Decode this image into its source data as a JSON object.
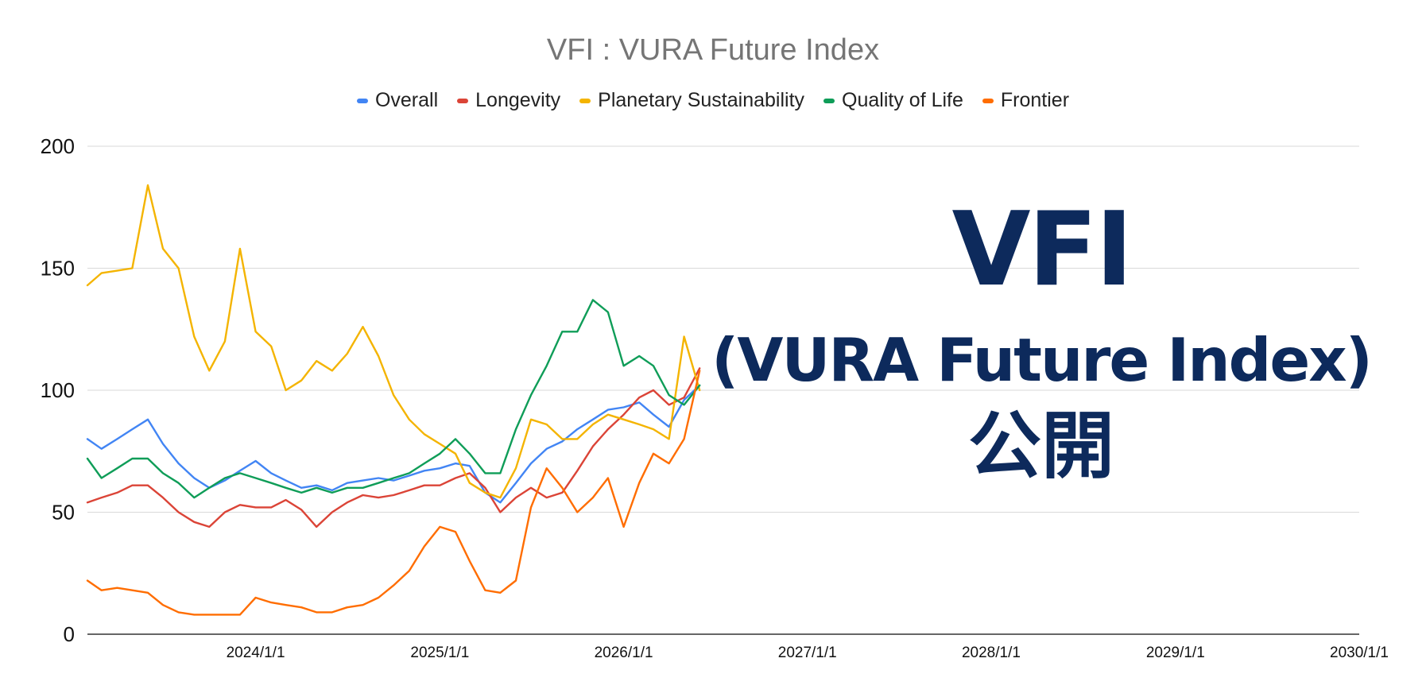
{
  "chart_data": {
    "type": "line",
    "title": "VFI : VURA Future Index",
    "xlabel": "",
    "ylabel": "",
    "ylim": [
      0,
      200
    ],
    "xlim": [
      "2023-02-01",
      "2030-01-01"
    ],
    "y_ticks": [
      0,
      50,
      100,
      150,
      200
    ],
    "y_tick_labels": [
      "0",
      "50",
      "100",
      "150",
      "200"
    ],
    "x_ticks": [
      "2024-01-01",
      "2025-01-01",
      "2026-01-01",
      "2027-01-01",
      "2028-01-01",
      "2029-01-01",
      "2030-01-01"
    ],
    "x_tick_labels": [
      "2024/1/1",
      "2025/1/1",
      "2026/1/1",
      "2027/1/1",
      "2028/1/1",
      "2029/1/1",
      "2030/1/1"
    ],
    "grid": true,
    "legend": "top-center",
    "series": [
      {
        "name": "Overall",
        "color": "#4285f4",
        "points": [
          [
            "2023-02-01",
            80
          ],
          [
            "2023-03-01",
            76
          ],
          [
            "2023-04-01",
            80
          ],
          [
            "2023-05-01",
            84
          ],
          [
            "2023-06-01",
            88
          ],
          [
            "2023-07-01",
            78
          ],
          [
            "2023-08-01",
            70
          ],
          [
            "2023-09-01",
            64
          ],
          [
            "2023-10-01",
            60
          ],
          [
            "2023-11-01",
            63
          ],
          [
            "2023-12-01",
            67
          ],
          [
            "2024-01-01",
            71
          ],
          [
            "2024-02-01",
            66
          ],
          [
            "2024-03-01",
            63
          ],
          [
            "2024-04-01",
            60
          ],
          [
            "2024-05-01",
            61
          ],
          [
            "2024-06-01",
            59
          ],
          [
            "2024-07-01",
            62
          ],
          [
            "2024-08-01",
            63
          ],
          [
            "2024-09-01",
            64
          ],
          [
            "2024-10-01",
            63
          ],
          [
            "2024-11-01",
            65
          ],
          [
            "2024-12-01",
            67
          ],
          [
            "2025-01-01",
            68
          ],
          [
            "2025-02-01",
            70
          ],
          [
            "2025-03-01",
            69
          ],
          [
            "2025-04-01",
            58
          ],
          [
            "2025-05-01",
            54
          ],
          [
            "2025-06-01",
            62
          ],
          [
            "2025-07-01",
            70
          ],
          [
            "2025-08-01",
            76
          ],
          [
            "2025-09-01",
            79
          ],
          [
            "2025-10-01",
            84
          ],
          [
            "2025-11-01",
            88
          ],
          [
            "2025-12-01",
            92
          ],
          [
            "2026-01-01",
            93
          ],
          [
            "2026-02-01",
            95
          ],
          [
            "2026-03-01",
            90
          ],
          [
            "2026-04-01",
            85
          ],
          [
            "2026-05-01",
            96
          ],
          [
            "2026-06-01",
            102
          ]
        ]
      },
      {
        "name": "Longevity",
        "color": "#db4437",
        "points": [
          [
            "2023-02-01",
            54
          ],
          [
            "2023-03-01",
            56
          ],
          [
            "2023-04-01",
            58
          ],
          [
            "2023-05-01",
            61
          ],
          [
            "2023-06-01",
            61
          ],
          [
            "2023-07-01",
            56
          ],
          [
            "2023-08-01",
            50
          ],
          [
            "2023-09-01",
            46
          ],
          [
            "2023-10-01",
            44
          ],
          [
            "2023-11-01",
            50
          ],
          [
            "2023-12-01",
            53
          ],
          [
            "2024-01-01",
            52
          ],
          [
            "2024-02-01",
            52
          ],
          [
            "2024-03-01",
            55
          ],
          [
            "2024-04-01",
            51
          ],
          [
            "2024-05-01",
            44
          ],
          [
            "2024-06-01",
            50
          ],
          [
            "2024-07-01",
            54
          ],
          [
            "2024-08-01",
            57
          ],
          [
            "2024-09-01",
            56
          ],
          [
            "2024-10-01",
            57
          ],
          [
            "2024-11-01",
            59
          ],
          [
            "2024-12-01",
            61
          ],
          [
            "2025-01-01",
            61
          ],
          [
            "2025-02-01",
            64
          ],
          [
            "2025-03-01",
            66
          ],
          [
            "2025-04-01",
            60
          ],
          [
            "2025-05-01",
            50
          ],
          [
            "2025-06-01",
            56
          ],
          [
            "2025-07-01",
            60
          ],
          [
            "2025-08-01",
            56
          ],
          [
            "2025-09-01",
            58
          ],
          [
            "2025-10-01",
            67
          ],
          [
            "2025-11-01",
            77
          ],
          [
            "2025-12-01",
            84
          ],
          [
            "2026-01-01",
            90
          ],
          [
            "2026-02-01",
            97
          ],
          [
            "2026-03-01",
            100
          ],
          [
            "2026-04-01",
            94
          ],
          [
            "2026-05-01",
            97
          ],
          [
            "2026-06-01",
            109
          ]
        ]
      },
      {
        "name": "Planetary Sustainability",
        "color": "#f4b400",
        "points": [
          [
            "2023-02-01",
            143
          ],
          [
            "2023-03-01",
            148
          ],
          [
            "2023-04-01",
            149
          ],
          [
            "2023-05-01",
            150
          ],
          [
            "2023-06-01",
            184
          ],
          [
            "2023-07-01",
            158
          ],
          [
            "2023-08-01",
            150
          ],
          [
            "2023-09-01",
            122
          ],
          [
            "2023-10-01",
            108
          ],
          [
            "2023-11-01",
            120
          ],
          [
            "2023-12-01",
            158
          ],
          [
            "2024-01-01",
            124
          ],
          [
            "2024-02-01",
            118
          ],
          [
            "2024-03-01",
            100
          ],
          [
            "2024-04-01",
            104
          ],
          [
            "2024-05-01",
            112
          ],
          [
            "2024-06-01",
            108
          ],
          [
            "2024-07-01",
            115
          ],
          [
            "2024-08-01",
            126
          ],
          [
            "2024-09-01",
            114
          ],
          [
            "2024-10-01",
            98
          ],
          [
            "2024-11-01",
            88
          ],
          [
            "2024-12-01",
            82
          ],
          [
            "2025-01-01",
            78
          ],
          [
            "2025-02-01",
            74
          ],
          [
            "2025-03-01",
            62
          ],
          [
            "2025-04-01",
            58
          ],
          [
            "2025-05-01",
            56
          ],
          [
            "2025-06-01",
            68
          ],
          [
            "2025-07-01",
            88
          ],
          [
            "2025-08-01",
            86
          ],
          [
            "2025-09-01",
            80
          ],
          [
            "2025-10-01",
            80
          ],
          [
            "2025-11-01",
            86
          ],
          [
            "2025-12-01",
            90
          ],
          [
            "2026-01-01",
            88
          ],
          [
            "2026-02-01",
            86
          ],
          [
            "2026-03-01",
            84
          ],
          [
            "2026-04-01",
            80
          ],
          [
            "2026-05-01",
            122
          ],
          [
            "2026-06-01",
            100
          ]
        ]
      },
      {
        "name": "Quality of Life",
        "color": "#0f9d58",
        "points": [
          [
            "2023-02-01",
            72
          ],
          [
            "2023-03-01",
            64
          ],
          [
            "2023-04-01",
            68
          ],
          [
            "2023-05-01",
            72
          ],
          [
            "2023-06-01",
            72
          ],
          [
            "2023-07-01",
            66
          ],
          [
            "2023-08-01",
            62
          ],
          [
            "2023-09-01",
            56
          ],
          [
            "2023-10-01",
            60
          ],
          [
            "2023-11-01",
            64
          ],
          [
            "2023-12-01",
            66
          ],
          [
            "2024-01-01",
            64
          ],
          [
            "2024-02-01",
            62
          ],
          [
            "2024-03-01",
            60
          ],
          [
            "2024-04-01",
            58
          ],
          [
            "2024-05-01",
            60
          ],
          [
            "2024-06-01",
            58
          ],
          [
            "2024-07-01",
            60
          ],
          [
            "2024-08-01",
            60
          ],
          [
            "2024-09-01",
            62
          ],
          [
            "2024-10-01",
            64
          ],
          [
            "2024-11-01",
            66
          ],
          [
            "2024-12-01",
            70
          ],
          [
            "2025-01-01",
            74
          ],
          [
            "2025-02-01",
            80
          ],
          [
            "2025-03-01",
            74
          ],
          [
            "2025-04-01",
            66
          ],
          [
            "2025-05-01",
            66
          ],
          [
            "2025-06-01",
            84
          ],
          [
            "2025-07-01",
            98
          ],
          [
            "2025-08-01",
            110
          ],
          [
            "2025-09-01",
            124
          ],
          [
            "2025-10-01",
            124
          ],
          [
            "2025-11-01",
            137
          ],
          [
            "2025-12-01",
            132
          ],
          [
            "2026-01-01",
            110
          ],
          [
            "2026-02-01",
            114
          ],
          [
            "2026-03-01",
            110
          ],
          [
            "2026-04-01",
            98
          ],
          [
            "2026-05-01",
            94
          ],
          [
            "2026-06-01",
            102
          ]
        ]
      },
      {
        "name": "Frontier",
        "color": "#ff6d00",
        "points": [
          [
            "2023-02-01",
            22
          ],
          [
            "2023-03-01",
            18
          ],
          [
            "2023-04-01",
            19
          ],
          [
            "2023-05-01",
            18
          ],
          [
            "2023-06-01",
            17
          ],
          [
            "2023-07-01",
            12
          ],
          [
            "2023-08-01",
            9
          ],
          [
            "2023-09-01",
            8
          ],
          [
            "2023-10-01",
            8
          ],
          [
            "2023-11-01",
            8
          ],
          [
            "2023-12-01",
            8
          ],
          [
            "2024-01-01",
            15
          ],
          [
            "2024-02-01",
            13
          ],
          [
            "2024-03-01",
            12
          ],
          [
            "2024-04-01",
            11
          ],
          [
            "2024-05-01",
            9
          ],
          [
            "2024-06-01",
            9
          ],
          [
            "2024-07-01",
            11
          ],
          [
            "2024-08-01",
            12
          ],
          [
            "2024-09-01",
            15
          ],
          [
            "2024-10-01",
            20
          ],
          [
            "2024-11-01",
            26
          ],
          [
            "2024-12-01",
            36
          ],
          [
            "2025-01-01",
            44
          ],
          [
            "2025-02-01",
            42
          ],
          [
            "2025-03-01",
            30
          ],
          [
            "2025-04-01",
            18
          ],
          [
            "2025-05-01",
            17
          ],
          [
            "2025-06-01",
            22
          ],
          [
            "2025-07-01",
            52
          ],
          [
            "2025-08-01",
            68
          ],
          [
            "2025-09-01",
            60
          ],
          [
            "2025-10-01",
            50
          ],
          [
            "2025-11-01",
            56
          ],
          [
            "2025-12-01",
            64
          ],
          [
            "2026-01-01",
            44
          ],
          [
            "2026-02-01",
            62
          ],
          [
            "2026-03-01",
            74
          ],
          [
            "2026-04-01",
            70
          ],
          [
            "2026-05-01",
            80
          ],
          [
            "2026-06-01",
            108
          ]
        ]
      }
    ]
  },
  "overlay": {
    "line1": "VFI",
    "line2": "(VURA Future Index)",
    "line3": "公開"
  }
}
